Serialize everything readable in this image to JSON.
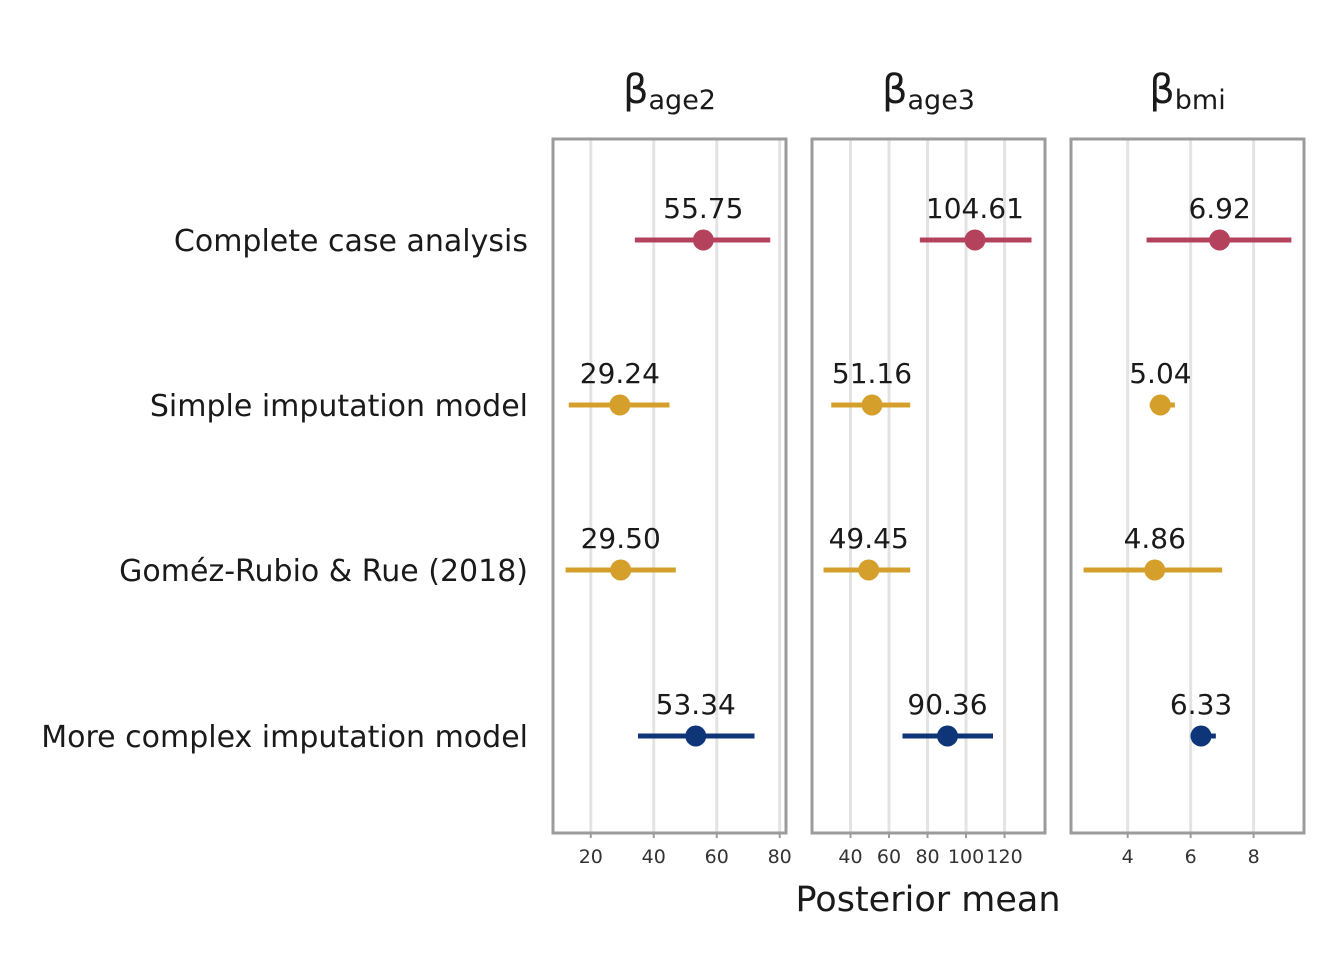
{
  "chart_data": {
    "type": "forest",
    "xlabel": "Posterior mean",
    "rows": [
      "Complete case analysis",
      "Simple imputation model",
      "Goméz-Rubio & Rue (2018)",
      "More complex imputation model"
    ],
    "colors": {
      "Complete case analysis": "#b5425c",
      "Simple imputation model": "#d59f2c",
      "Goméz-Rubio & Rue (2018)": "#d59f2c",
      "More complex imputation model": "#0e3577"
    },
    "grid": true,
    "panels": [
      {
        "symbol": "β",
        "subscript": "age2",
        "xlim": [
          8,
          82
        ],
        "ticks": [
          20,
          40,
          60,
          80
        ],
        "estimates": [
          {
            "row": "Complete case analysis",
            "mean": 55.75,
            "lower": 34,
            "upper": 77,
            "label": "55.75"
          },
          {
            "row": "Simple imputation model",
            "mean": 29.24,
            "lower": 13,
            "upper": 45,
            "label": "29.24"
          },
          {
            "row": "Goméz-Rubio & Rue (2018)",
            "mean": 29.5,
            "lower": 12,
            "upper": 47,
            "label": "29.50"
          },
          {
            "row": "More complex imputation model",
            "mean": 53.34,
            "lower": 35,
            "upper": 72,
            "label": "53.34"
          }
        ]
      },
      {
        "symbol": "β",
        "subscript": "age3",
        "xlim": [
          20,
          141
        ],
        "ticks": [
          40,
          60,
          80,
          100,
          120
        ],
        "estimates": [
          {
            "row": "Complete case analysis",
            "mean": 104.61,
            "lower": 76,
            "upper": 134,
            "label": "104.61"
          },
          {
            "row": "Simple imputation model",
            "mean": 51.16,
            "lower": 30,
            "upper": 71,
            "label": "51.16"
          },
          {
            "row": "Goméz-Rubio & Rue (2018)",
            "mean": 49.45,
            "lower": 26,
            "upper": 71,
            "label": "49.45"
          },
          {
            "row": "More complex imputation model",
            "mean": 90.36,
            "lower": 67,
            "upper": 114,
            "label": "90.36"
          }
        ]
      },
      {
        "symbol": "β",
        "subscript": "bmi",
        "xlim": [
          2.2,
          9.6
        ],
        "ticks": [
          4,
          6,
          8
        ],
        "estimates": [
          {
            "row": "Complete case analysis",
            "mean": 6.92,
            "lower": 4.6,
            "upper": 9.2,
            "label": "6.92"
          },
          {
            "row": "Simple imputation model",
            "mean": 5.04,
            "lower": 4.7,
            "upper": 5.5,
            "label": "5.04"
          },
          {
            "row": "Goméz-Rubio & Rue (2018)",
            "mean": 4.86,
            "lower": 2.6,
            "upper": 7.0,
            "label": "4.86"
          },
          {
            "row": "More complex imputation model",
            "mean": 6.33,
            "lower": 6.0,
            "upper": 6.8,
            "label": "6.33"
          }
        ]
      }
    ]
  }
}
